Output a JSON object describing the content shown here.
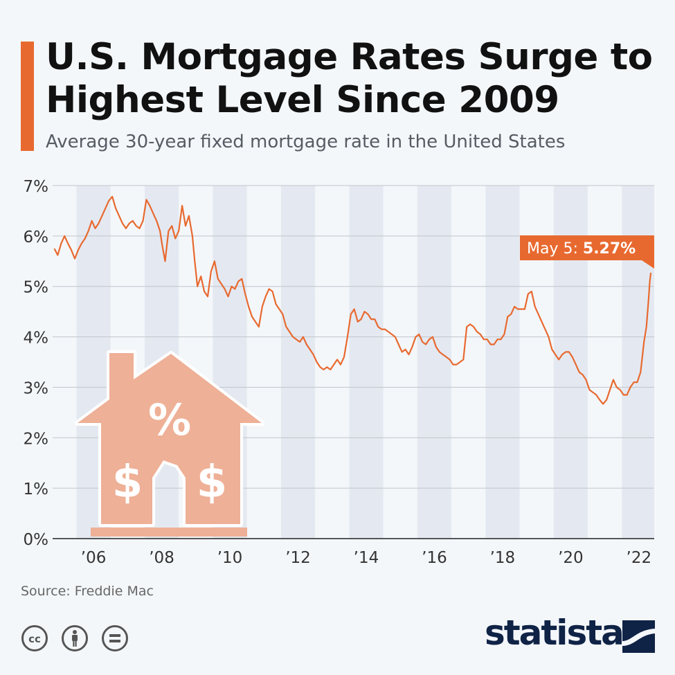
{
  "header": {
    "title": "U.S. Mortgage Rates Surge to Highest Level Since 2009",
    "subtitle": "Average 30-year fixed mortgage rate in the United States"
  },
  "footer": {
    "source": "Source: Freddie Mac",
    "brand": "statista",
    "license_icons": [
      "creative-commons-icon",
      "attribution-icon",
      "no-derivatives-icon"
    ]
  },
  "colors": {
    "accent": "#e8692f",
    "line": "#e8692f",
    "band": "#e4e9f1",
    "grid": "#bfc4ca",
    "background": "#f4f7fa",
    "house": "#eeb096",
    "brand": "#0f2346"
  },
  "illustration": {
    "icon": "house-with-percent-and-dollar-icon"
  },
  "chart_data": {
    "type": "line",
    "title": "U.S. Mortgage Rates Surge to Highest Level Since 2009",
    "subtitle": "Average 30-year fixed mortgage rate in the United States",
    "xlabel": "",
    "ylabel": "",
    "ylim": [
      0,
      7
    ],
    "xlim": [
      2004.8,
      2022.45
    ],
    "y_ticks": [
      0,
      1,
      2,
      3,
      4,
      5,
      6,
      7
    ],
    "y_tick_labels": [
      "0%",
      "1%",
      "2%",
      "3%",
      "4%",
      "5%",
      "6%",
      "7%"
    ],
    "x_ticks": [
      2006,
      2008,
      2010,
      2012,
      2014,
      2016,
      2018,
      2020,
      2022
    ],
    "x_tick_labels": [
      "’06",
      "’08",
      "’10",
      "’12",
      "’14",
      "’16",
      "’18",
      "’20",
      "’22"
    ],
    "grid": true,
    "alternating_year_bands": true,
    "annotation": {
      "prefix": "May 5: ",
      "value_label": "5.27%",
      "x": 2022.35,
      "y": 5.27
    },
    "series": [
      {
        "values": [
          [
            2004.85,
            5.75
          ],
          [
            2004.95,
            5.62
          ],
          [
            2005.05,
            5.85
          ],
          [
            2005.15,
            6.0
          ],
          [
            2005.25,
            5.85
          ],
          [
            2005.35,
            5.72
          ],
          [
            2005.45,
            5.55
          ],
          [
            2005.55,
            5.72
          ],
          [
            2005.65,
            5.85
          ],
          [
            2005.75,
            5.95
          ],
          [
            2005.85,
            6.1
          ],
          [
            2005.95,
            6.3
          ],
          [
            2006.05,
            6.15
          ],
          [
            2006.15,
            6.25
          ],
          [
            2006.25,
            6.4
          ],
          [
            2006.35,
            6.55
          ],
          [
            2006.45,
            6.7
          ],
          [
            2006.55,
            6.78
          ],
          [
            2006.65,
            6.55
          ],
          [
            2006.75,
            6.4
          ],
          [
            2006.85,
            6.25
          ],
          [
            2006.95,
            6.15
          ],
          [
            2007.05,
            6.25
          ],
          [
            2007.15,
            6.3
          ],
          [
            2007.25,
            6.2
          ],
          [
            2007.35,
            6.15
          ],
          [
            2007.45,
            6.3
          ],
          [
            2007.55,
            6.72
          ],
          [
            2007.65,
            6.6
          ],
          [
            2007.75,
            6.45
          ],
          [
            2007.85,
            6.3
          ],
          [
            2007.95,
            6.1
          ],
          [
            2008.02,
            5.8
          ],
          [
            2008.1,
            5.5
          ],
          [
            2008.2,
            6.1
          ],
          [
            2008.3,
            6.2
          ],
          [
            2008.4,
            5.95
          ],
          [
            2008.5,
            6.1
          ],
          [
            2008.6,
            6.6
          ],
          [
            2008.7,
            6.2
          ],
          [
            2008.8,
            6.4
          ],
          [
            2008.9,
            6.0
          ],
          [
            2008.97,
            5.5
          ],
          [
            2009.05,
            5.0
          ],
          [
            2009.15,
            5.2
          ],
          [
            2009.25,
            4.9
          ],
          [
            2009.35,
            4.8
          ],
          [
            2009.45,
            5.3
          ],
          [
            2009.55,
            5.5
          ],
          [
            2009.65,
            5.15
          ],
          [
            2009.75,
            5.05
          ],
          [
            2009.85,
            4.95
          ],
          [
            2009.95,
            4.8
          ],
          [
            2010.05,
            5.0
          ],
          [
            2010.15,
            4.95
          ],
          [
            2010.25,
            5.1
          ],
          [
            2010.35,
            5.15
          ],
          [
            2010.45,
            4.85
          ],
          [
            2010.55,
            4.6
          ],
          [
            2010.65,
            4.4
          ],
          [
            2010.75,
            4.3
          ],
          [
            2010.85,
            4.2
          ],
          [
            2010.95,
            4.6
          ],
          [
            2011.05,
            4.8
          ],
          [
            2011.15,
            4.95
          ],
          [
            2011.25,
            4.9
          ],
          [
            2011.35,
            4.65
          ],
          [
            2011.45,
            4.55
          ],
          [
            2011.55,
            4.45
          ],
          [
            2011.65,
            4.2
          ],
          [
            2011.75,
            4.1
          ],
          [
            2011.85,
            4.0
          ],
          [
            2011.95,
            3.95
          ],
          [
            2012.05,
            3.9
          ],
          [
            2012.15,
            4.0
          ],
          [
            2012.25,
            3.85
          ],
          [
            2012.35,
            3.75
          ],
          [
            2012.45,
            3.65
          ],
          [
            2012.55,
            3.5
          ],
          [
            2012.65,
            3.4
          ],
          [
            2012.75,
            3.35
          ],
          [
            2012.85,
            3.4
          ],
          [
            2012.95,
            3.35
          ],
          [
            2013.05,
            3.45
          ],
          [
            2013.15,
            3.55
          ],
          [
            2013.25,
            3.45
          ],
          [
            2013.35,
            3.6
          ],
          [
            2013.45,
            4.0
          ],
          [
            2013.55,
            4.45
          ],
          [
            2013.65,
            4.55
          ],
          [
            2013.75,
            4.3
          ],
          [
            2013.85,
            4.35
          ],
          [
            2013.95,
            4.5
          ],
          [
            2014.05,
            4.45
          ],
          [
            2014.15,
            4.35
          ],
          [
            2014.25,
            4.35
          ],
          [
            2014.35,
            4.2
          ],
          [
            2014.45,
            4.15
          ],
          [
            2014.55,
            4.15
          ],
          [
            2014.65,
            4.1
          ],
          [
            2014.75,
            4.05
          ],
          [
            2014.85,
            4.0
          ],
          [
            2014.95,
            3.85
          ],
          [
            2015.05,
            3.7
          ],
          [
            2015.15,
            3.75
          ],
          [
            2015.25,
            3.65
          ],
          [
            2015.35,
            3.8
          ],
          [
            2015.45,
            4.0
          ],
          [
            2015.55,
            4.05
          ],
          [
            2015.65,
            3.9
          ],
          [
            2015.75,
            3.85
          ],
          [
            2015.85,
            3.95
          ],
          [
            2015.95,
            4.0
          ],
          [
            2016.05,
            3.8
          ],
          [
            2016.15,
            3.7
          ],
          [
            2016.25,
            3.65
          ],
          [
            2016.35,
            3.6
          ],
          [
            2016.45,
            3.55
          ],
          [
            2016.55,
            3.45
          ],
          [
            2016.65,
            3.45
          ],
          [
            2016.75,
            3.5
          ],
          [
            2016.85,
            3.55
          ],
          [
            2016.95,
            4.2
          ],
          [
            2017.05,
            4.25
          ],
          [
            2017.15,
            4.2
          ],
          [
            2017.25,
            4.1
          ],
          [
            2017.35,
            4.05
          ],
          [
            2017.45,
            3.95
          ],
          [
            2017.55,
            3.95
          ],
          [
            2017.65,
            3.85
          ],
          [
            2017.75,
            3.85
          ],
          [
            2017.85,
            3.95
          ],
          [
            2017.95,
            3.95
          ],
          [
            2018.05,
            4.05
          ],
          [
            2018.15,
            4.4
          ],
          [
            2018.25,
            4.45
          ],
          [
            2018.35,
            4.6
          ],
          [
            2018.45,
            4.55
          ],
          [
            2018.55,
            4.55
          ],
          [
            2018.65,
            4.55
          ],
          [
            2018.75,
            4.85
          ],
          [
            2018.85,
            4.9
          ],
          [
            2018.95,
            4.6
          ],
          [
            2019.05,
            4.45
          ],
          [
            2019.15,
            4.3
          ],
          [
            2019.25,
            4.15
          ],
          [
            2019.35,
            4.0
          ],
          [
            2019.45,
            3.75
          ],
          [
            2019.55,
            3.65
          ],
          [
            2019.65,
            3.55
          ],
          [
            2019.75,
            3.65
          ],
          [
            2019.85,
            3.7
          ],
          [
            2019.95,
            3.7
          ],
          [
            2020.05,
            3.6
          ],
          [
            2020.15,
            3.45
          ],
          [
            2020.25,
            3.3
          ],
          [
            2020.35,
            3.25
          ],
          [
            2020.45,
            3.15
          ],
          [
            2020.55,
            2.95
          ],
          [
            2020.65,
            2.9
          ],
          [
            2020.75,
            2.85
          ],
          [
            2020.85,
            2.75
          ],
          [
            2020.95,
            2.67
          ],
          [
            2021.05,
            2.75
          ],
          [
            2021.15,
            2.95
          ],
          [
            2021.25,
            3.15
          ],
          [
            2021.35,
            3.0
          ],
          [
            2021.45,
            2.95
          ],
          [
            2021.55,
            2.85
          ],
          [
            2021.65,
            2.85
          ],
          [
            2021.75,
            3.0
          ],
          [
            2021.85,
            3.1
          ],
          [
            2021.95,
            3.1
          ],
          [
            2022.05,
            3.3
          ],
          [
            2022.15,
            3.9
          ],
          [
            2022.22,
            4.2
          ],
          [
            2022.28,
            4.7
          ],
          [
            2022.32,
            5.1
          ],
          [
            2022.35,
            5.27
          ]
        ]
      }
    ]
  }
}
